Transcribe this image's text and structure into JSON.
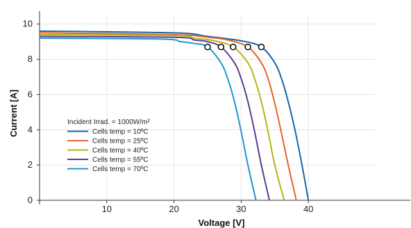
{
  "chart_data": {
    "type": "line",
    "title": "",
    "xlabel": "Voltage [V]",
    "ylabel": "Current [A]",
    "xlim": [
      0,
      50
    ],
    "ylim": [
      0,
      10.5
    ],
    "xticks": [
      10,
      20,
      30,
      40
    ],
    "yticks": [
      0,
      2,
      4,
      6,
      8,
      10
    ],
    "grid": true,
    "legend_title": "Incident Irrad. = 1000W/m²",
    "legend_position": "lower-left",
    "series": [
      {
        "name": "Cells temp = 10ºC",
        "color": "#1565a8",
        "x": [
          0,
          20,
          25,
          30,
          33,
          35,
          36,
          37,
          38,
          39,
          40
        ],
        "y": [
          9.6,
          9.5,
          9.3,
          9.05,
          8.7,
          7.8,
          6.9,
          5.6,
          4.0,
          2.1,
          0
        ]
      },
      {
        "name": "Cells temp = 25ºC",
        "color": "#e8612c",
        "x": [
          0,
          20,
          25,
          28,
          31,
          33,
          34,
          35,
          36,
          37,
          38.2
        ],
        "y": [
          9.5,
          9.4,
          9.25,
          9.1,
          8.7,
          7.8,
          6.9,
          5.5,
          3.8,
          2.0,
          0
        ]
      },
      {
        "name": "Cells temp = 40ºC",
        "color": "#b5b514",
        "x": [
          0,
          20,
          23,
          26,
          28.8,
          31,
          32,
          33,
          34,
          35,
          36.4
        ],
        "y": [
          9.4,
          9.35,
          9.2,
          9.05,
          8.7,
          7.8,
          6.9,
          5.6,
          3.9,
          2.0,
          0
        ]
      },
      {
        "name": "Cells temp = 55ºC",
        "color": "#5b3a8e",
        "x": [
          0,
          20,
          23,
          25,
          27,
          29,
          30,
          31,
          32,
          33,
          34.2
        ],
        "y": [
          9.3,
          9.25,
          9.1,
          9.0,
          8.7,
          7.8,
          6.9,
          5.6,
          3.9,
          2.0,
          0
        ]
      },
      {
        "name": "Cells temp = 70ºC",
        "color": "#1f95d0",
        "x": [
          0,
          18,
          21,
          23,
          25,
          27,
          28,
          29,
          30,
          31,
          32.2
        ],
        "y": [
          9.2,
          9.15,
          9.0,
          8.9,
          8.7,
          7.8,
          6.9,
          5.6,
          3.9,
          2.0,
          0
        ]
      }
    ],
    "mpp_points": [
      {
        "x": 33.0,
        "y": 8.7
      },
      {
        "x": 31.0,
        "y": 8.7
      },
      {
        "x": 28.8,
        "y": 8.7
      },
      {
        "x": 27.0,
        "y": 8.7
      },
      {
        "x": 25.0,
        "y": 8.7
      }
    ]
  }
}
